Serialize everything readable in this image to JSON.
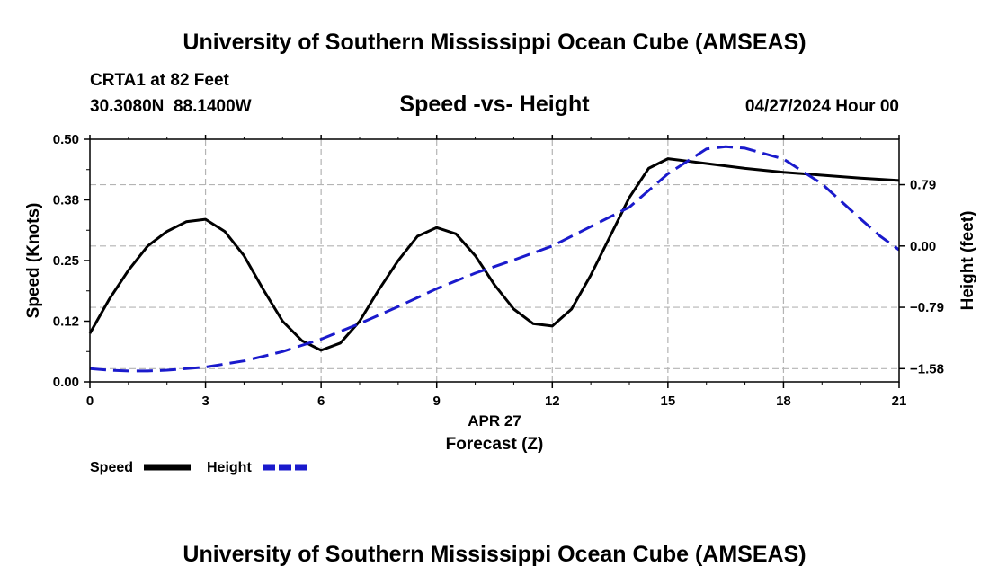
{
  "header": {
    "title": "University of Southern Mississippi Ocean Cube (AMSEAS)",
    "station": "CRTA1 at 82 Feet",
    "coords": "30.3080N  88.1400W",
    "chart_title": "Speed -vs- Height",
    "datetime": "04/27/2024 Hour 00"
  },
  "footer": {
    "title": "University of Southern Mississippi Ocean Cube (AMSEAS)"
  },
  "legend": {
    "speed_label": "Speed",
    "height_label": "Height"
  },
  "colors": {
    "speed": "#000000",
    "height": "#1a1acc",
    "grid": "#b4b4b4"
  },
  "chart_data": {
    "type": "line",
    "title": "Speed -vs- Height",
    "xlabel": "Forecast (Z)",
    "xsublabel": "APR 27",
    "ylabel": "Speed (Knots)",
    "y2label": "Height (feet)",
    "xlim": [
      0,
      21
    ],
    "ylim": [
      0,
      0.5
    ],
    "y2lim": [
      -1.75,
      1.375
    ],
    "x_ticks": [
      0,
      3,
      6,
      9,
      12,
      15,
      18,
      21
    ],
    "x_tick_labels": [
      "0",
      "3",
      "6",
      "9",
      "12",
      "15",
      "18",
      "21"
    ],
    "y_ticks": [
      0,
      0.125,
      0.25,
      0.375,
      0.5
    ],
    "y_tick_labels": [
      "0.00",
      "0.12",
      "0.25",
      "0.38",
      "0.50"
    ],
    "y2_ticks": [
      -1.58,
      -0.79,
      0.0,
      0.79
    ],
    "y2_tick_labels": [
      "−1.58",
      "−0.79",
      "0.00",
      "0.79"
    ],
    "grid": true,
    "series": [
      {
        "name": "Speed",
        "axis": "left",
        "style": "solid",
        "x": [
          0,
          0.5,
          1,
          1.5,
          2,
          2.5,
          3,
          3.5,
          4,
          4.5,
          5,
          5.5,
          6,
          6.5,
          7,
          7.5,
          8,
          8.5,
          9,
          9.5,
          10,
          10.5,
          11,
          11.5,
          12,
          12.5,
          13,
          13.5,
          14,
          14.5,
          15,
          16,
          17,
          18,
          19,
          20,
          21
        ],
        "values": [
          0.1,
          0.17,
          0.23,
          0.28,
          0.31,
          0.33,
          0.335,
          0.31,
          0.26,
          0.19,
          0.125,
          0.085,
          0.065,
          0.08,
          0.125,
          0.19,
          0.25,
          0.3,
          0.318,
          0.305,
          0.26,
          0.2,
          0.15,
          0.12,
          0.115,
          0.15,
          0.22,
          0.3,
          0.38,
          0.44,
          0.46,
          0.45,
          0.44,
          0.432,
          0.426,
          0.42,
          0.415
        ]
      },
      {
        "name": "Height",
        "axis": "right",
        "style": "dashed",
        "x": [
          0,
          0.5,
          1,
          1.5,
          2,
          3,
          4,
          5,
          6,
          7,
          8,
          9,
          10,
          11,
          12,
          13,
          14,
          15,
          16,
          16.5,
          17,
          18,
          19,
          20,
          20.5,
          21
        ],
        "values": [
          -1.58,
          -1.6,
          -1.61,
          -1.61,
          -1.6,
          -1.56,
          -1.48,
          -1.36,
          -1.2,
          -1.0,
          -0.78,
          -0.55,
          -0.35,
          -0.18,
          0.0,
          0.25,
          0.5,
          0.93,
          1.25,
          1.28,
          1.26,
          1.12,
          0.8,
          0.35,
          0.13,
          -0.05
        ]
      }
    ]
  }
}
